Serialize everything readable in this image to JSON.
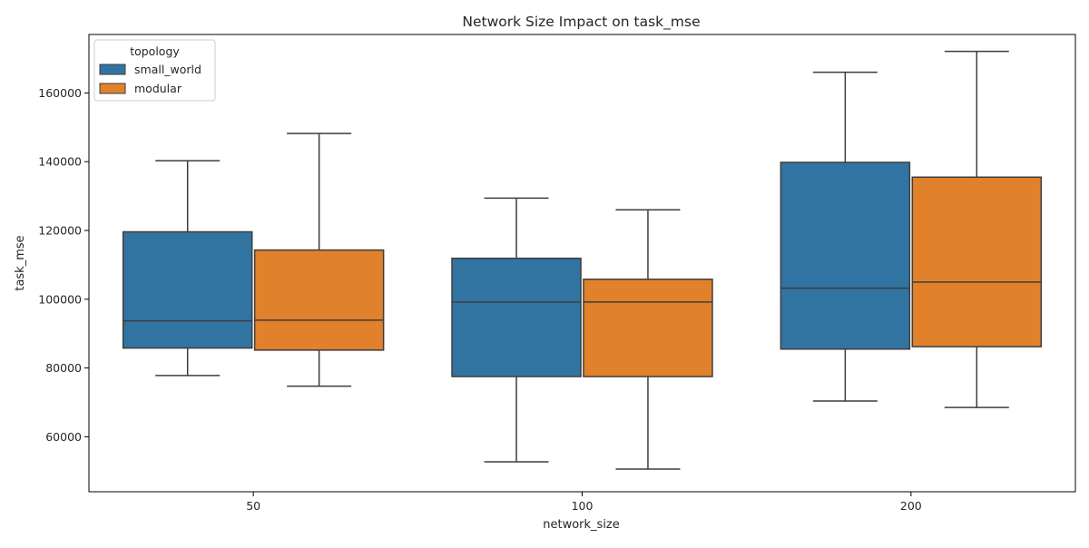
{
  "chart_data": {
    "type": "box",
    "title": "Network Size Impact on task_mse",
    "xlabel": "network_size",
    "ylabel": "task_mse",
    "categories": [
      "50",
      "100",
      "200"
    ],
    "ylim": [
      44000,
      177000
    ],
    "yticks": [
      60000,
      80000,
      100000,
      120000,
      140000,
      160000
    ],
    "legend": {
      "title": "topology",
      "position": "top-left"
    },
    "series": [
      {
        "name": "small_world",
        "color": "#3274a1",
        "boxes": [
          {
            "whisker_low": 77800,
            "q1": 85800,
            "median": 93700,
            "q3": 119600,
            "whisker_high": 140300
          },
          {
            "whisker_low": 52700,
            "q1": 77500,
            "median": 99200,
            "q3": 111900,
            "whisker_high": 129400
          },
          {
            "whisker_low": 70400,
            "q1": 85500,
            "median": 103200,
            "q3": 139800,
            "whisker_high": 166000
          }
        ]
      },
      {
        "name": "modular",
        "color": "#e1812c",
        "boxes": [
          {
            "whisker_low": 74700,
            "q1": 85200,
            "median": 93900,
            "q3": 114300,
            "whisker_high": 148200
          },
          {
            "whisker_low": 50600,
            "q1": 77500,
            "median": 99200,
            "q3": 105800,
            "whisker_high": 126000
          },
          {
            "whisker_low": 68500,
            "q1": 86200,
            "median": 105000,
            "q3": 135500,
            "whisker_high": 172100
          }
        ]
      }
    ]
  }
}
